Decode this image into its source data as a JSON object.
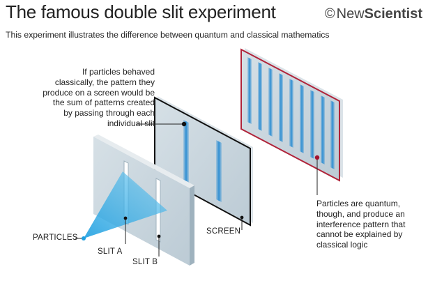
{
  "header": {
    "title": "The famous double slit experiment",
    "subtitle": "This experiment illustrates the difference between quantum and classical mathematics",
    "logo": {
      "copyright_symbol": "©",
      "brand_part1": "New",
      "brand_part2": "Scientist"
    }
  },
  "annotations": {
    "classical": "If particles behaved classically, the pattern they produce on a screen would be the sum of patterns created by passing through each individual slit",
    "quantum": "Particles are quantum, though, and produce an interference pattern that cannot be explained by classical logic"
  },
  "labels": {
    "particles": "PARTICLES",
    "slit_a": "SLIT A",
    "slit_b": "SLIT B",
    "screen": "SCREEN"
  },
  "colors": {
    "panel_fill": "#c5d3dc",
    "panel_edge": "#e3e9ed",
    "beam_blue": "#2aa6e0",
    "stripe_blue": "#2f8fd3",
    "screen_border": "#111111",
    "quantum_border": "#b0243a",
    "marker_red": "#a3122f"
  }
}
